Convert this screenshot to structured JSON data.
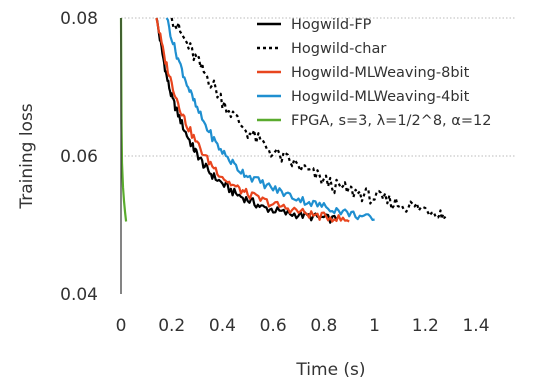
{
  "chart_data": {
    "type": "line",
    "xlabel": "Time (s)",
    "ylabel": "Training loss",
    "xlim": [
      0,
      1.4
    ],
    "ylim": [
      0.04,
      0.08
    ],
    "x_ticks": [
      "0",
      "0.2",
      "0.4",
      "0.6",
      "0.8",
      "1",
      "1.2",
      "1.4"
    ],
    "y_ticks": [
      "0.04",
      "0.06",
      "0.08"
    ],
    "grid": "horizontal dotted at 0.06 and 0.08",
    "legend_position": "top-right",
    "series": [
      {
        "name": "Hogwild-FP",
        "color": "#000000",
        "dash": "solid",
        "x": [
          0.14,
          0.16,
          0.18,
          0.2,
          0.22,
          0.25,
          0.28,
          0.3,
          0.33,
          0.36,
          0.4,
          0.44,
          0.48,
          0.52,
          0.56,
          0.6,
          0.65,
          0.7,
          0.75,
          0.8,
          0.85
        ],
        "y": [
          0.08,
          0.0755,
          0.0715,
          0.0685,
          0.0665,
          0.0638,
          0.0615,
          0.0603,
          0.0585,
          0.0572,
          0.056,
          0.0548,
          0.054,
          0.0533,
          0.0525,
          0.0522,
          0.0517,
          0.0515,
          0.0512,
          0.051,
          0.0508
        ]
      },
      {
        "name": "Hogwild-char",
        "color": "#000000",
        "dash": "dotted",
        "x": [
          0.2,
          0.24,
          0.28,
          0.32,
          0.36,
          0.4,
          0.45,
          0.5,
          0.55,
          0.6,
          0.65,
          0.7,
          0.75,
          0.8,
          0.85,
          0.9,
          0.95,
          1.0,
          1.05,
          1.1,
          1.15,
          1.2,
          1.25,
          1.28
        ],
        "y": [
          0.08,
          0.0775,
          0.075,
          0.0725,
          0.0705,
          0.068,
          0.0655,
          0.0635,
          0.062,
          0.0605,
          0.0595,
          0.0585,
          0.0575,
          0.0565,
          0.0555,
          0.055,
          0.0545,
          0.054,
          0.0535,
          0.053,
          0.0527,
          0.0523,
          0.052,
          0.0512
        ]
      },
      {
        "name": "Hogwild-MLWeaving-8bit",
        "color": "#e8451e",
        "dash": "solid",
        "x": [
          0.14,
          0.17,
          0.2,
          0.23,
          0.26,
          0.3,
          0.34,
          0.38,
          0.42,
          0.46,
          0.5,
          0.55,
          0.6,
          0.65,
          0.7,
          0.75,
          0.8,
          0.85,
          0.9
        ],
        "y": [
          0.08,
          0.0745,
          0.0705,
          0.0672,
          0.0645,
          0.0618,
          0.0595,
          0.0578,
          0.0563,
          0.0553,
          0.0545,
          0.0537,
          0.053,
          0.0525,
          0.052,
          0.0515,
          0.0512,
          0.051,
          0.0505
        ]
      },
      {
        "name": "Hogwild-MLWeaving-4bit",
        "color": "#1f8fd0",
        "dash": "solid",
        "x": [
          0.18,
          0.21,
          0.24,
          0.27,
          0.3,
          0.34,
          0.38,
          0.42,
          0.46,
          0.5,
          0.55,
          0.6,
          0.65,
          0.7,
          0.75,
          0.8,
          0.85,
          0.9,
          0.95,
          1.0
        ],
        "y": [
          0.08,
          0.0758,
          0.0725,
          0.0695,
          0.0668,
          0.064,
          0.0615,
          0.0598,
          0.0582,
          0.0572,
          0.0562,
          0.0553,
          0.0545,
          0.0538,
          0.0532,
          0.0527,
          0.0522,
          0.0517,
          0.0512,
          0.0508
        ]
      },
      {
        "name": "FPGA, s=3, λ=1/2^8, α=12",
        "color": "#5aab2e",
        "dash": "solid",
        "x": [
          0.0,
          0.002,
          0.004,
          0.008,
          0.012,
          0.016,
          0.02
        ],
        "y": [
          0.08,
          0.0645,
          0.059,
          0.0555,
          0.0535,
          0.0518,
          0.0505
        ]
      }
    ]
  }
}
